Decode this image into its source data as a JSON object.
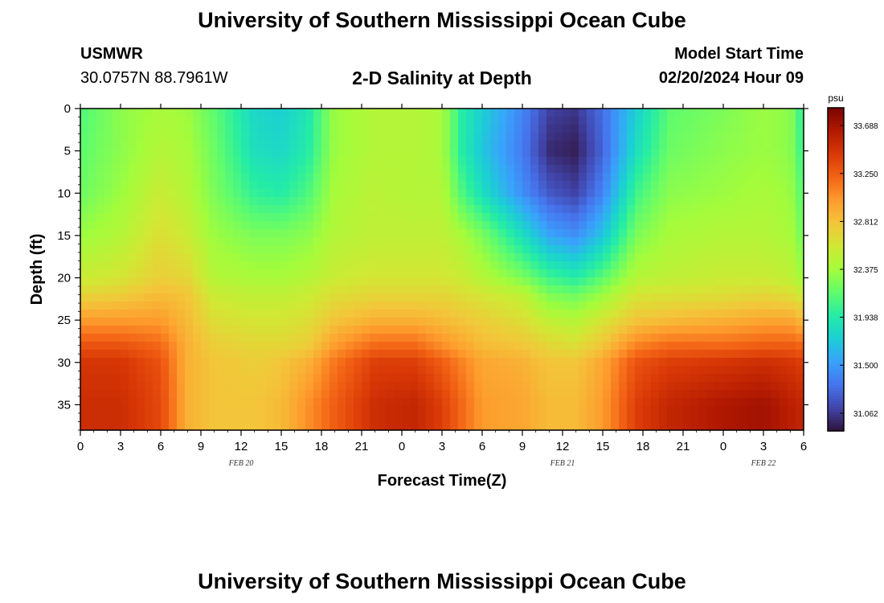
{
  "header": {
    "title": "University of Southern Mississippi Ocean Cube",
    "station_name": "USMWR",
    "station_coords": "30.0757N  88.7961W",
    "chart_title": "2-D Salinity at Depth",
    "model_start_label": "Model Start Time",
    "model_start_value": "02/20/2024 Hour 09"
  },
  "footer": {
    "title": "University of Southern Mississippi Ocean Cube"
  },
  "chart_data": {
    "type": "heatmap",
    "title": "2-D Salinity at Depth",
    "xlabel": "Forecast Time(Z)",
    "ylabel": "Depth (ft)",
    "x_range_hours": [
      0,
      54
    ],
    "y_range_ft": [
      0,
      38
    ],
    "y_inverted": true,
    "x_ticks": [
      "0",
      "3",
      "6",
      "9",
      "12",
      "15",
      "18",
      "21",
      "0",
      "3",
      "6",
      "9",
      "12",
      "15",
      "18",
      "21",
      "0",
      "3",
      "6"
    ],
    "x_tick_hours": [
      0,
      3,
      6,
      9,
      12,
      15,
      18,
      21,
      24,
      27,
      30,
      33,
      36,
      39,
      42,
      45,
      48,
      51,
      54
    ],
    "y_ticks": [
      0,
      5,
      10,
      15,
      20,
      25,
      30,
      35
    ],
    "date_labels": [
      {
        "text": "FEB 20",
        "hour": 12
      },
      {
        "text": "FEB 21",
        "hour": 36
      },
      {
        "text": "FEB 22",
        "hour": 51
      }
    ],
    "colorbar": {
      "unit": "psu",
      "range": [
        30.9,
        33.85
      ],
      "ticks": [
        "33.688",
        "33.250",
        "32.812",
        "32.375",
        "31.938",
        "31.500",
        "31.062"
      ],
      "colors": [
        "#30123b",
        "#4145ab",
        "#4675ed",
        "#39a2fc",
        "#1bcfd4",
        "#24eca6",
        "#61fc6c",
        "#a4fc3b",
        "#d1e834",
        "#f3c63a",
        "#fe9b2d",
        "#f36315",
        "#d93806",
        "#b11901",
        "#7a0402"
      ]
    },
    "depth_rows": [
      0,
      5,
      10,
      15,
      20,
      22,
      25,
      28,
      30,
      35,
      38
    ],
    "salinity_columns": [
      {
        "hour": 0,
        "values": [
          32.1,
          32.15,
          32.2,
          32.35,
          32.55,
          32.7,
          33.0,
          33.3,
          33.45,
          33.5,
          33.5
        ]
      },
      {
        "hour": 3,
        "values": [
          32.3,
          32.3,
          32.35,
          32.45,
          32.6,
          32.75,
          33.0,
          33.3,
          33.45,
          33.5,
          33.5
        ]
      },
      {
        "hour": 6,
        "values": [
          32.4,
          32.45,
          32.55,
          32.65,
          32.75,
          32.85,
          33.0,
          33.2,
          33.3,
          33.35,
          33.35
        ]
      },
      {
        "hour": 8,
        "values": [
          32.35,
          32.4,
          32.45,
          32.55,
          32.7,
          32.8,
          32.85,
          32.9,
          32.9,
          32.9,
          32.9
        ]
      },
      {
        "hour": 10,
        "values": [
          32.15,
          32.2,
          32.25,
          32.35,
          32.45,
          32.55,
          32.65,
          32.75,
          32.8,
          32.8,
          32.8
        ]
      },
      {
        "hour": 13,
        "values": [
          31.8,
          31.85,
          32.0,
          32.25,
          32.4,
          32.5,
          32.6,
          32.7,
          32.75,
          32.8,
          32.8
        ]
      },
      {
        "hour": 15,
        "values": [
          31.75,
          31.8,
          31.95,
          32.25,
          32.4,
          32.5,
          32.6,
          32.7,
          32.8,
          32.85,
          32.85
        ]
      },
      {
        "hour": 17,
        "values": [
          31.9,
          31.95,
          32.1,
          32.3,
          32.45,
          32.55,
          32.65,
          32.75,
          32.9,
          33.05,
          33.05
        ]
      },
      {
        "hour": 19,
        "values": [
          32.35,
          32.35,
          32.4,
          32.45,
          32.55,
          32.65,
          32.8,
          33.0,
          33.15,
          33.25,
          33.25
        ]
      },
      {
        "hour": 22,
        "values": [
          32.45,
          32.45,
          32.48,
          32.5,
          32.6,
          32.7,
          32.9,
          33.2,
          33.4,
          33.5,
          33.5
        ]
      },
      {
        "hour": 25,
        "values": [
          32.45,
          32.45,
          32.45,
          32.5,
          32.6,
          32.7,
          32.9,
          33.2,
          33.4,
          33.55,
          33.55
        ]
      },
      {
        "hour": 27,
        "values": [
          32.4,
          32.4,
          32.45,
          32.5,
          32.6,
          32.7,
          32.85,
          33.05,
          33.25,
          33.4,
          33.4
        ]
      },
      {
        "hour": 28.5,
        "values": [
          31.95,
          31.95,
          32.1,
          32.4,
          32.55,
          32.65,
          32.8,
          32.95,
          33.1,
          33.2,
          33.2
        ]
      },
      {
        "hour": 30,
        "values": [
          31.75,
          31.7,
          31.85,
          32.25,
          32.45,
          32.6,
          32.75,
          32.85,
          32.95,
          33.0,
          33.0
        ]
      },
      {
        "hour": 33,
        "values": [
          31.4,
          31.35,
          31.45,
          31.85,
          32.25,
          32.5,
          32.65,
          32.8,
          32.9,
          32.95,
          32.95
        ]
      },
      {
        "hour": 35,
        "values": [
          31.1,
          31.0,
          31.2,
          31.55,
          32.05,
          32.25,
          32.5,
          32.7,
          32.8,
          32.85,
          32.85
        ]
      },
      {
        "hour": 37,
        "values": [
          31.05,
          30.95,
          31.1,
          31.45,
          31.95,
          32.2,
          32.45,
          32.65,
          32.8,
          32.85,
          32.85
        ]
      },
      {
        "hour": 39,
        "values": [
          31.3,
          31.25,
          31.4,
          31.7,
          32.15,
          32.35,
          32.6,
          32.8,
          32.95,
          33.0,
          33.0
        ]
      },
      {
        "hour": 41.5,
        "values": [
          31.75,
          31.85,
          32.05,
          32.25,
          32.45,
          32.6,
          32.8,
          33.1,
          33.3,
          33.4,
          33.4
        ]
      },
      {
        "hour": 44,
        "values": [
          32.15,
          32.2,
          32.3,
          32.4,
          32.5,
          32.62,
          32.85,
          33.2,
          33.4,
          33.55,
          33.55
        ]
      },
      {
        "hour": 48,
        "values": [
          32.25,
          32.3,
          32.35,
          32.45,
          32.55,
          32.65,
          32.9,
          33.2,
          33.45,
          33.65,
          33.65
        ]
      },
      {
        "hour": 51,
        "values": [
          32.35,
          32.35,
          32.4,
          32.45,
          32.55,
          32.7,
          32.95,
          33.25,
          33.5,
          33.7,
          33.7
        ]
      },
      {
        "hour": 53,
        "values": [
          32.3,
          32.3,
          32.35,
          32.4,
          32.5,
          32.65,
          32.95,
          33.25,
          33.45,
          33.6,
          33.6
        ]
      },
      {
        "hour": 54,
        "values": [
          31.95,
          32.0,
          32.1,
          32.2,
          32.35,
          32.55,
          32.85,
          33.2,
          33.4,
          33.55,
          33.55
        ]
      }
    ]
  }
}
